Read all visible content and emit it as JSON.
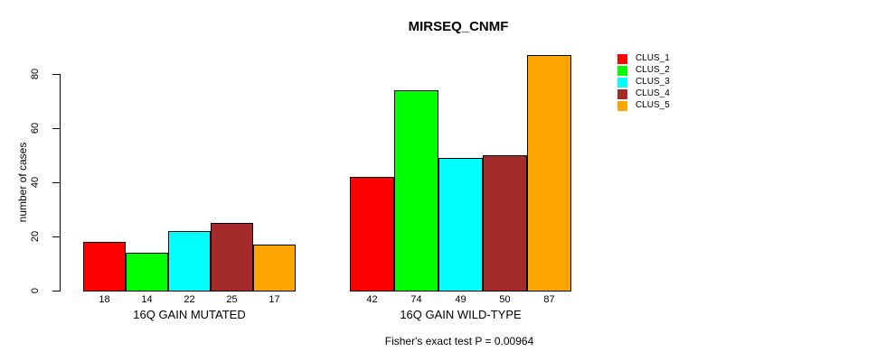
{
  "chart_data": {
    "type": "bar",
    "title": "MIRSEQ_CNMF",
    "ylabel": "number of cases",
    "xlabel": "",
    "ylim": [
      0,
      87
    ],
    "yticks": [
      0,
      20,
      40,
      60,
      80
    ],
    "grid": false,
    "legend_position": "right",
    "categories": [
      "16Q GAIN MUTATED",
      "16Q GAIN WILD-TYPE"
    ],
    "series": [
      {
        "name": "CLUS_1",
        "color": "#FF0000",
        "values": [
          18,
          42
        ]
      },
      {
        "name": "CLUS_2",
        "color": "#00FF00",
        "values": [
          14,
          74
        ]
      },
      {
        "name": "CLUS_3",
        "color": "#00FFFF",
        "values": [
          22,
          49
        ]
      },
      {
        "name": "CLUS_4",
        "color": "#A52A2A",
        "values": [
          25,
          50
        ]
      },
      {
        "name": "CLUS_5",
        "color": "#FFA500",
        "values": [
          17,
          87
        ]
      }
    ],
    "bar_value_labels": [
      [
        18,
        14,
        22,
        25,
        17
      ],
      [
        42,
        74,
        49,
        50,
        87
      ]
    ],
    "annotation": "Fisher's exact test P = 0.00964"
  }
}
